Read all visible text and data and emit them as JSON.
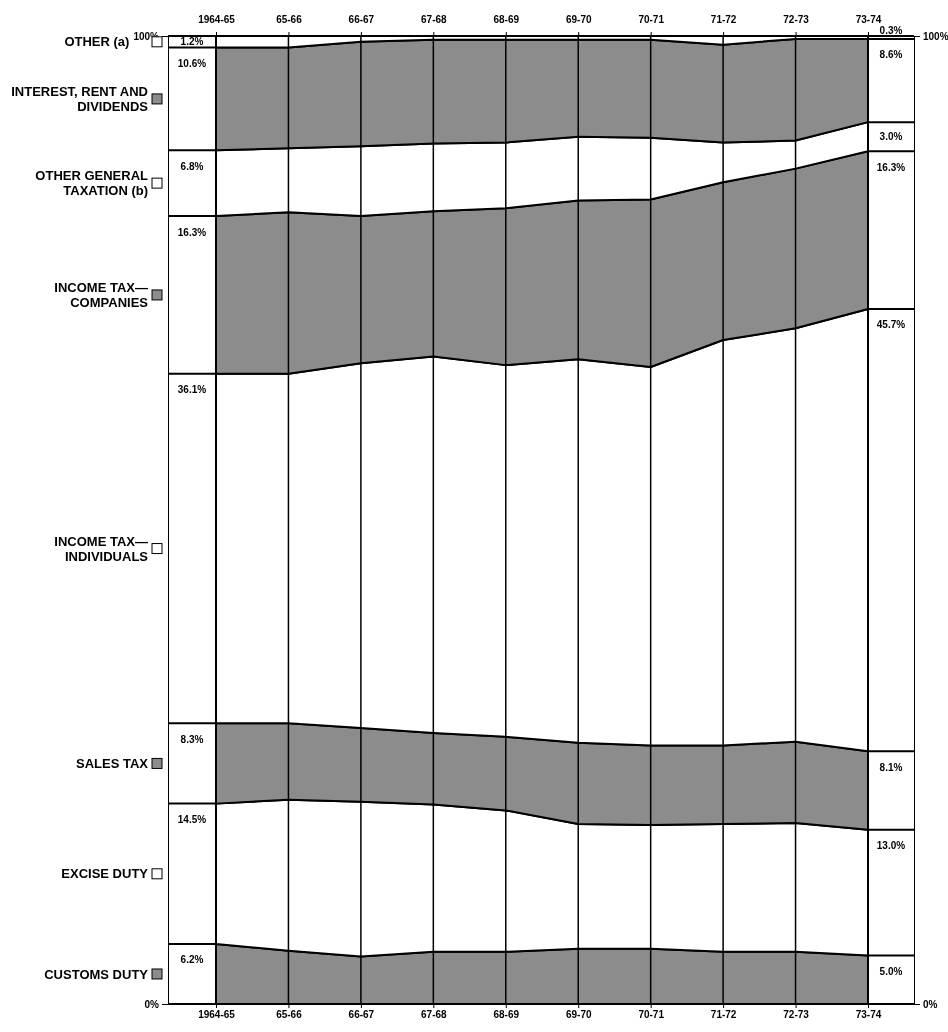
{
  "chart_data": {
    "type": "area",
    "stacked": true,
    "grid": "x",
    "legend": "left",
    "categories": [
      "1964-65",
      "65-66",
      "66-67",
      "67-68",
      "68-69",
      "69-70",
      "70-71",
      "71-72",
      "72-73",
      "73-74"
    ],
    "ylim": [
      0,
      100
    ],
    "yticks": [
      {
        "value": 0,
        "label": "0%"
      },
      {
        "value": 100,
        "label": "100%"
      }
    ],
    "y2lim": [
      0,
      100
    ],
    "y2ticks": [
      {
        "value": 0,
        "label": "0%"
      },
      {
        "value": 100,
        "label": "100%"
      }
    ],
    "series": [
      {
        "name": "CUSTOMS DUTY",
        "color": "#8c8c8c",
        "values": [
          6.2,
          5.5,
          4.9,
          5.4,
          5.4,
          5.7,
          5.7,
          5.4,
          5.4,
          5.0
        ],
        "value_labels": [
          "6.2%",
          null,
          null,
          null,
          null,
          null,
          null,
          null,
          null,
          "5.0%"
        ]
      },
      {
        "name": "EXCISE DUTY",
        "color": "#ffffff",
        "values": [
          14.5,
          15.6,
          16.0,
          15.2,
          14.6,
          12.9,
          12.8,
          13.2,
          13.3,
          13.0
        ],
        "value_labels": [
          "14.5%",
          null,
          null,
          null,
          null,
          null,
          null,
          null,
          null,
          "13.0%"
        ]
      },
      {
        "name": "SALES TAX",
        "color": "#8c8c8c",
        "values": [
          8.3,
          7.9,
          7.6,
          7.4,
          7.6,
          8.4,
          8.2,
          8.1,
          8.4,
          8.1
        ],
        "value_labels": [
          "8.3%",
          null,
          null,
          null,
          null,
          null,
          null,
          null,
          null,
          "8.1%"
        ]
      },
      {
        "name": "INCOME TAX—INDIVIDUALS",
        "color": "#ffffff",
        "values": [
          36.1,
          36.1,
          37.7,
          38.9,
          38.4,
          39.6,
          39.1,
          41.9,
          42.7,
          45.7
        ],
        "value_labels": [
          "36.1%",
          null,
          null,
          null,
          null,
          null,
          null,
          null,
          null,
          "45.7%"
        ]
      },
      {
        "name": "INCOME TAX—COMPANIES",
        "color": "#8c8c8c",
        "values": [
          16.3,
          16.7,
          15.2,
          15.0,
          16.2,
          16.4,
          17.3,
          16.3,
          16.5,
          16.3
        ],
        "value_labels": [
          "16.3%",
          null,
          null,
          null,
          null,
          null,
          null,
          null,
          null,
          "16.3%"
        ]
      },
      {
        "name": "OTHER GENERAL TAXATION (b)",
        "color": "#ffffff",
        "values": [
          6.8,
          6.6,
          7.2,
          7.0,
          6.8,
          6.6,
          6.4,
          4.1,
          2.9,
          3.0
        ],
        "value_labels": [
          "6.8%",
          null,
          null,
          null,
          null,
          null,
          null,
          null,
          null,
          "3.0%"
        ]
      },
      {
        "name": "INTEREST, RENT AND DIVIDENDS",
        "color": "#8c8c8c",
        "values": [
          10.6,
          10.4,
          10.8,
          10.7,
          10.6,
          10.0,
          10.1,
          10.1,
          10.5,
          8.6
        ],
        "value_labels": [
          "10.6%",
          null,
          null,
          null,
          null,
          null,
          null,
          null,
          null,
          "8.6%"
        ]
      },
      {
        "name": "OTHER (a)",
        "color": "#ffffff",
        "values": [
          1.2,
          1.2,
          0.6,
          0.4,
          0.4,
          0.4,
          0.4,
          0.9,
          0.3,
          0.3
        ],
        "value_labels": [
          "1.2%",
          null,
          null,
          null,
          null,
          null,
          null,
          null,
          null,
          "0.3%"
        ]
      }
    ]
  }
}
